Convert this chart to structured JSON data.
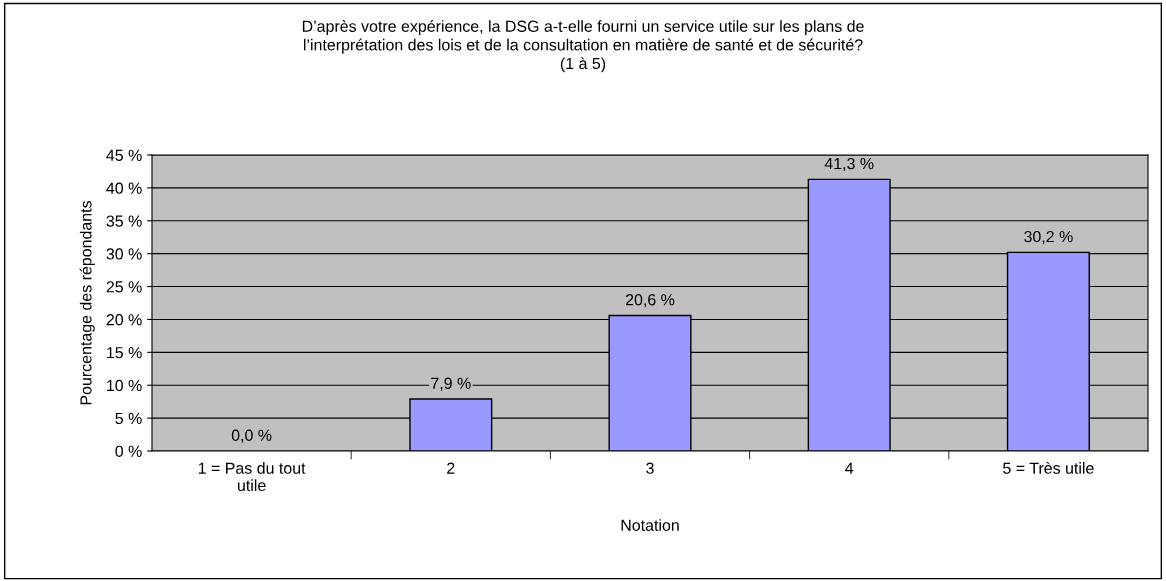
{
  "chart_data": {
    "type": "bar",
    "title": "D’après votre expérience, la DSG a-t-elle fourni un service utile sur les plans de\nl’interprétation des lois et de la consultation en matière de santé et de sécurité?\n(1 à 5)",
    "xlabel": "Notation",
    "ylabel": "Pourcentage des répondants",
    "categories": [
      "1 = Pas du tout\nutile",
      "2",
      "3",
      "4",
      "5 = Très utile"
    ],
    "values": [
      0.0,
      7.9,
      20.6,
      41.3,
      30.2
    ],
    "value_labels": [
      "0,0 %",
      "7,9 %",
      "20,6 %",
      "41,3 %",
      "30,2 %"
    ],
    "color": "#9999ff",
    "ylim": [
      0,
      45
    ],
    "yticks": [
      {
        "value": 0,
        "label": "0 %"
      },
      {
        "value": 5,
        "label": "5 %"
      },
      {
        "value": 10,
        "label": "10 %"
      },
      {
        "value": 15,
        "label": "15 %"
      },
      {
        "value": 20,
        "label": "20 %"
      },
      {
        "value": 25,
        "label": "25 %"
      },
      {
        "value": 30,
        "label": "30 %"
      },
      {
        "value": 35,
        "label": "35 %"
      },
      {
        "value": 40,
        "label": "40 %"
      },
      {
        "value": 45,
        "label": "45 %"
      }
    ],
    "grid": "y",
    "legend": false
  }
}
